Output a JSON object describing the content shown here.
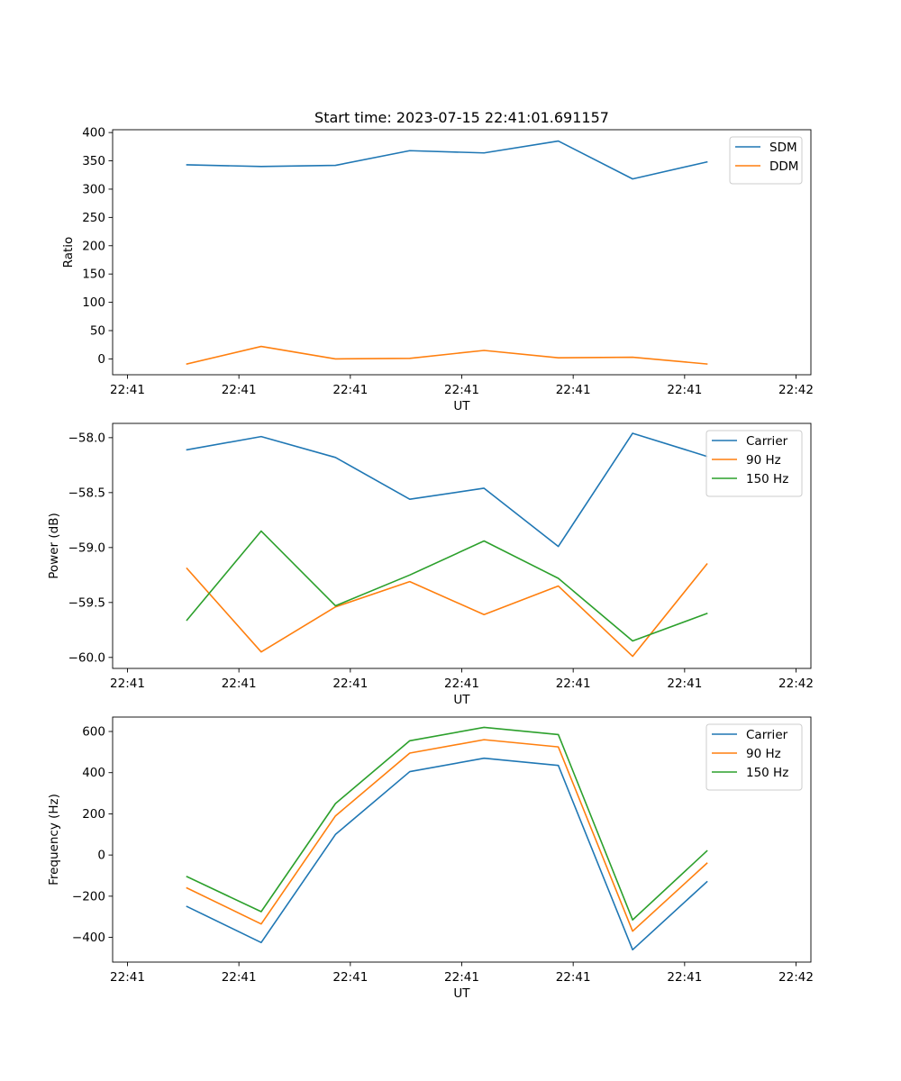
{
  "chart_data": [
    {
      "type": "line",
      "title": "Start time: 2023-07-15 22:41:01.691157",
      "xlabel": "UT",
      "ylabel": "Ratio",
      "x_tick_labels": [
        "22:41",
        "22:41",
        "22:41",
        "22:41",
        "22:41",
        "22:41",
        "22:41"
      ],
      "x_tick_last": "22:42",
      "xlim": [
        -0.5,
        8.9
      ],
      "ylim": [
        -28,
        405
      ],
      "yticks": [
        0,
        50,
        100,
        150,
        200,
        250,
        300,
        350,
        400
      ],
      "ytick_labels": [
        "0",
        "50",
        "100",
        "150",
        "200",
        "250",
        "300",
        "350",
        "400"
      ],
      "x": [
        0.5,
        1.5,
        2.5,
        3.5,
        4.5,
        5.5,
        6.5,
        7.5
      ],
      "series": [
        {
          "name": "SDM",
          "color": "#1f77b4",
          "values": [
            343,
            340,
            342,
            368,
            364,
            385,
            318,
            348
          ]
        },
        {
          "name": "DDM",
          "color": "#ff7f0e",
          "values": [
            -9,
            22,
            0,
            1,
            15,
            2,
            3,
            -9
          ]
        }
      ],
      "legend": "top-right"
    },
    {
      "type": "line",
      "title": "",
      "xlabel": "UT",
      "ylabel": "Power (dB)",
      "x_tick_labels": [
        "22:41",
        "22:41",
        "22:41",
        "22:41",
        "22:41",
        "22:41",
        "22:41"
      ],
      "x_tick_last": "22:42",
      "xlim": [
        -0.5,
        8.9
      ],
      "ylim": [
        -60.1,
        -57.87
      ],
      "yticks": [
        -60.0,
        -59.5,
        -59.0,
        -58.5,
        -58.0
      ],
      "ytick_labels": [
        "−60.0",
        "−59.5",
        "−59.0",
        "−58.5",
        "−58.0"
      ],
      "x": [
        0.5,
        1.5,
        2.5,
        3.5,
        4.5,
        5.5,
        6.5,
        7.5
      ],
      "series": [
        {
          "name": "Carrier",
          "color": "#1f77b4",
          "values": [
            -58.11,
            -57.99,
            -58.18,
            -58.56,
            -58.46,
            -58.99,
            -57.96,
            -58.17
          ]
        },
        {
          "name": "90 Hz",
          "color": "#ff7f0e",
          "values": [
            -59.19,
            -59.95,
            -59.54,
            -59.31,
            -59.61,
            -59.35,
            -59.99,
            -59.15
          ]
        },
        {
          "name": "150 Hz",
          "color": "#2ca02c",
          "values": [
            -59.66,
            -58.85,
            -59.53,
            -59.25,
            -58.94,
            -59.28,
            -59.85,
            -59.6
          ]
        }
      ],
      "legend": "top-right"
    },
    {
      "type": "line",
      "title": "",
      "xlabel": "UT",
      "ylabel": "Frequency (Hz)",
      "x_tick_labels": [
        "22:41",
        "22:41",
        "22:41",
        "22:41",
        "22:41",
        "22:41",
        "22:41"
      ],
      "x_tick_last": "22:42",
      "xlim": [
        -0.5,
        8.9
      ],
      "ylim": [
        -520,
        670
      ],
      "yticks": [
        -400,
        -200,
        0,
        200,
        400,
        600
      ],
      "ytick_labels": [
        "−400",
        "−200",
        "0",
        "200",
        "400",
        "600"
      ],
      "x": [
        0.5,
        1.5,
        2.5,
        3.5,
        4.5,
        5.5,
        6.5,
        7.5
      ],
      "series": [
        {
          "name": "Carrier",
          "color": "#1f77b4",
          "values": [
            -250,
            -425,
            100,
            405,
            470,
            435,
            -460,
            -130
          ]
        },
        {
          "name": "90 Hz",
          "color": "#ff7f0e",
          "values": [
            -160,
            -335,
            190,
            495,
            560,
            525,
            -370,
            -40
          ]
        },
        {
          "name": "150 Hz",
          "color": "#2ca02c",
          "values": [
            -105,
            -275,
            250,
            555,
            620,
            585,
            -315,
            20
          ]
        }
      ],
      "legend": "top-right"
    }
  ]
}
